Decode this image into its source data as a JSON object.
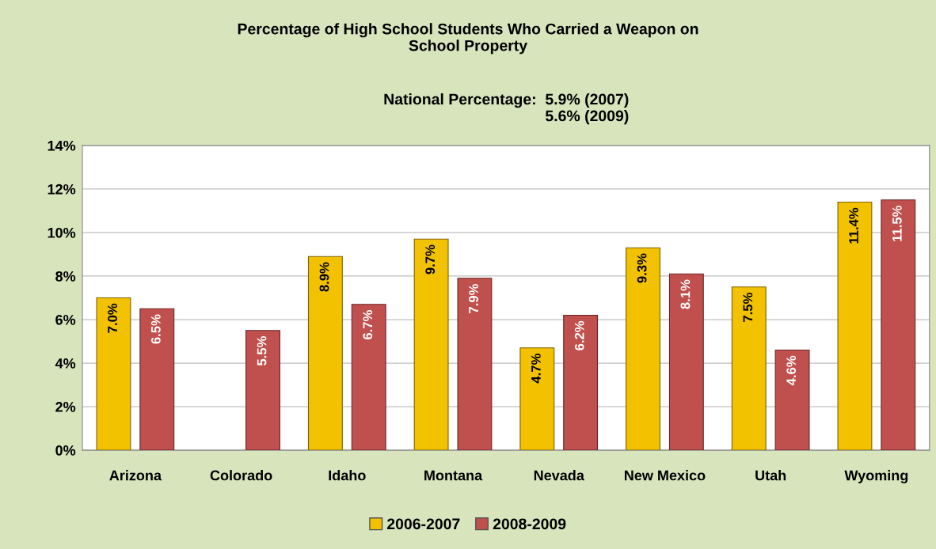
{
  "chart_data": {
    "type": "bar",
    "title": "Percentage of High School Students Who Carried a Weapon on\nSchool Property",
    "subtitle": "National Percentage:  5.9% (2007)\n5.6% (2009)",
    "categories": [
      "Arizona",
      "Colorado",
      "Idaho",
      "Montana",
      "Nevada",
      "New Mexico",
      "Utah",
      "Wyoming"
    ],
    "series": [
      {
        "name": "2006-2007",
        "color": "#f2c200",
        "values": [
          7.0,
          null,
          8.9,
          9.7,
          4.7,
          9.3,
          7.5,
          11.4
        ],
        "value_labels": [
          "7.0%",
          null,
          "8.9%",
          "9.7%",
          "4.7%",
          "9.3%",
          "7.5%",
          "11.4%"
        ]
      },
      {
        "name": "2008-2009",
        "color": "#c0504d",
        "values": [
          6.5,
          5.5,
          6.7,
          7.9,
          6.2,
          8.1,
          4.6,
          11.5
        ],
        "value_labels": [
          "6.5%",
          "5.5%",
          "6.7%",
          "7.9%",
          "6.2%",
          "8.1%",
          "4.6%",
          "11.5%"
        ]
      }
    ],
    "ylim": [
      0,
      14
    ],
    "yticks": [
      {
        "value": 0,
        "label": "0%"
      },
      {
        "value": 2,
        "label": "2%"
      },
      {
        "value": 4,
        "label": "4%"
      },
      {
        "value": 6,
        "label": "6%"
      },
      {
        "value": 8,
        "label": "8%"
      },
      {
        "value": 10,
        "label": "10%"
      },
      {
        "value": 12,
        "label": "12%"
      },
      {
        "value": 14,
        "label": "14%"
      }
    ],
    "grid": "y",
    "legend": "bottom"
  }
}
